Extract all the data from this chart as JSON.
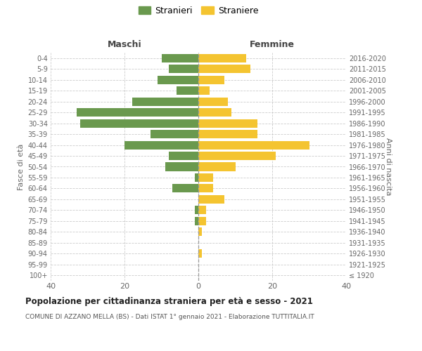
{
  "age_groups": [
    "100+",
    "95-99",
    "90-94",
    "85-89",
    "80-84",
    "75-79",
    "70-74",
    "65-69",
    "60-64",
    "55-59",
    "50-54",
    "45-49",
    "40-44",
    "35-39",
    "30-34",
    "25-29",
    "20-24",
    "15-19",
    "10-14",
    "5-9",
    "0-4"
  ],
  "birth_years": [
    "≤ 1920",
    "1921-1925",
    "1926-1930",
    "1931-1935",
    "1936-1940",
    "1941-1945",
    "1946-1950",
    "1951-1955",
    "1956-1960",
    "1961-1965",
    "1966-1970",
    "1971-1975",
    "1976-1980",
    "1981-1985",
    "1986-1990",
    "1991-1995",
    "1996-2000",
    "2001-2005",
    "2006-2010",
    "2011-2015",
    "2016-2020"
  ],
  "maschi": [
    0,
    0,
    0,
    0,
    0,
    1,
    1,
    0,
    7,
    1,
    9,
    8,
    20,
    13,
    32,
    33,
    18,
    6,
    11,
    8,
    10
  ],
  "femmine": [
    0,
    0,
    1,
    0,
    1,
    2,
    2,
    7,
    4,
    4,
    10,
    21,
    30,
    16,
    16,
    9,
    8,
    3,
    7,
    14,
    13
  ],
  "color_maschi": "#6a994e",
  "color_femmine": "#f4c430",
  "title": "Popolazione per cittadinanza straniera per età e sesso - 2021",
  "subtitle": "COMUNE DI AZZANO MELLA (BS) - Dati ISTAT 1° gennaio 2021 - Elaborazione TUTTITALIA.IT",
  "label_maschi": "Stranieri",
  "label_femmine": "Straniere",
  "xlabel_left": "Maschi",
  "xlabel_right": "Femmine",
  "ylabel_left": "Fasce di età",
  "ylabel_right": "Anni di nascita",
  "xlim": 40,
  "background_color": "#ffffff",
  "grid_color": "#cccccc"
}
